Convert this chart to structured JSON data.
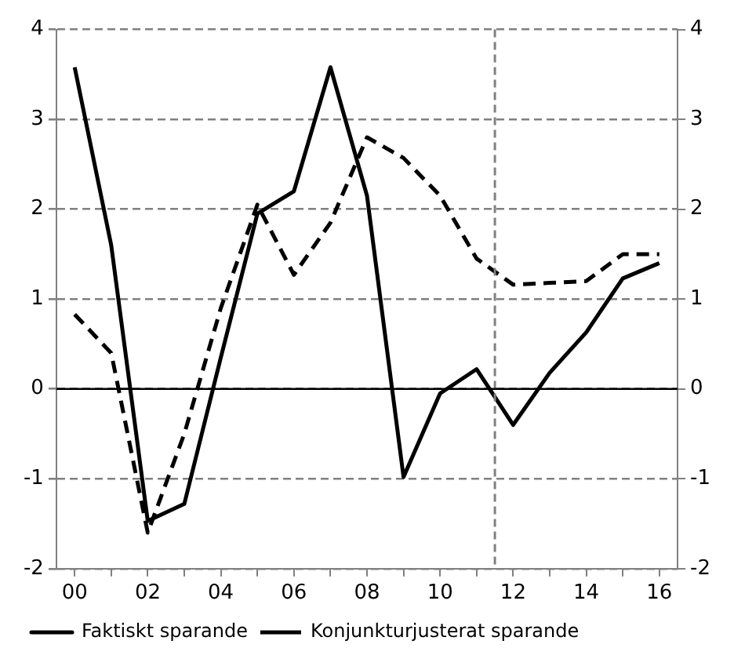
{
  "chart_data": {
    "type": "line",
    "x": [
      2000,
      2001,
      2002,
      2003,
      2004,
      2005,
      2006,
      2007,
      2008,
      2009,
      2010,
      2011,
      2012,
      2013,
      2014,
      2015,
      2016
    ],
    "series": [
      {
        "name": "Faktiskt sparande",
        "color": "#000000",
        "line_style": "solid",
        "values": [
          3.58,
          1.6,
          -1.47,
          -1.28,
          0.35,
          1.95,
          2.2,
          3.58,
          2.15,
          -0.98,
          -0.05,
          0.22,
          -0.4,
          0.18,
          0.63,
          1.23,
          1.4
        ]
      },
      {
        "name": "Konjunkturjusterat sparande",
        "color": "#000000",
        "line_style": "dashed",
        "values": [
          0.83,
          0.4,
          -1.6,
          -0.5,
          0.9,
          2.05,
          1.27,
          1.85,
          2.8,
          2.57,
          2.15,
          1.45,
          1.16,
          1.18,
          1.2,
          1.5,
          1.5
        ]
      }
    ],
    "xlim": [
      1999.5,
      2016.5
    ],
    "xticks": [
      {
        "value": 2000,
        "label": "00"
      },
      {
        "value": 2001,
        "label": null
      },
      {
        "value": 2002,
        "label": "02"
      },
      {
        "value": 2003,
        "label": null
      },
      {
        "value": 2004,
        "label": "04"
      },
      {
        "value": 2005,
        "label": null
      },
      {
        "value": 2006,
        "label": "06"
      },
      {
        "value": 2007,
        "label": null
      },
      {
        "value": 2008,
        "label": "08"
      },
      {
        "value": 2009,
        "label": null
      },
      {
        "value": 2010,
        "label": "10"
      },
      {
        "value": 2011,
        "label": null
      },
      {
        "value": 2012,
        "label": "12"
      },
      {
        "value": 2013,
        "label": null
      },
      {
        "value": 2014,
        "label": "14"
      },
      {
        "value": 2015,
        "label": null
      },
      {
        "value": 2016,
        "label": "16"
      }
    ],
    "ylim": [
      -2,
      4
    ],
    "yticks": [
      -2,
      -1,
      0,
      1,
      2,
      3,
      4
    ],
    "y2lim": [
      -2,
      4
    ],
    "y2ticks": [
      -2,
      -1,
      0,
      1,
      2,
      3,
      4
    ],
    "grid": "y",
    "legend": "bottom",
    "marker": "none",
    "ref_lines": [
      {
        "axis": "x",
        "value": 2011.5,
        "color": "#808080",
        "line_style": "dashed"
      },
      {
        "axis": "y",
        "value": 0,
        "color": "#000000",
        "line_style": "solid"
      }
    ]
  }
}
